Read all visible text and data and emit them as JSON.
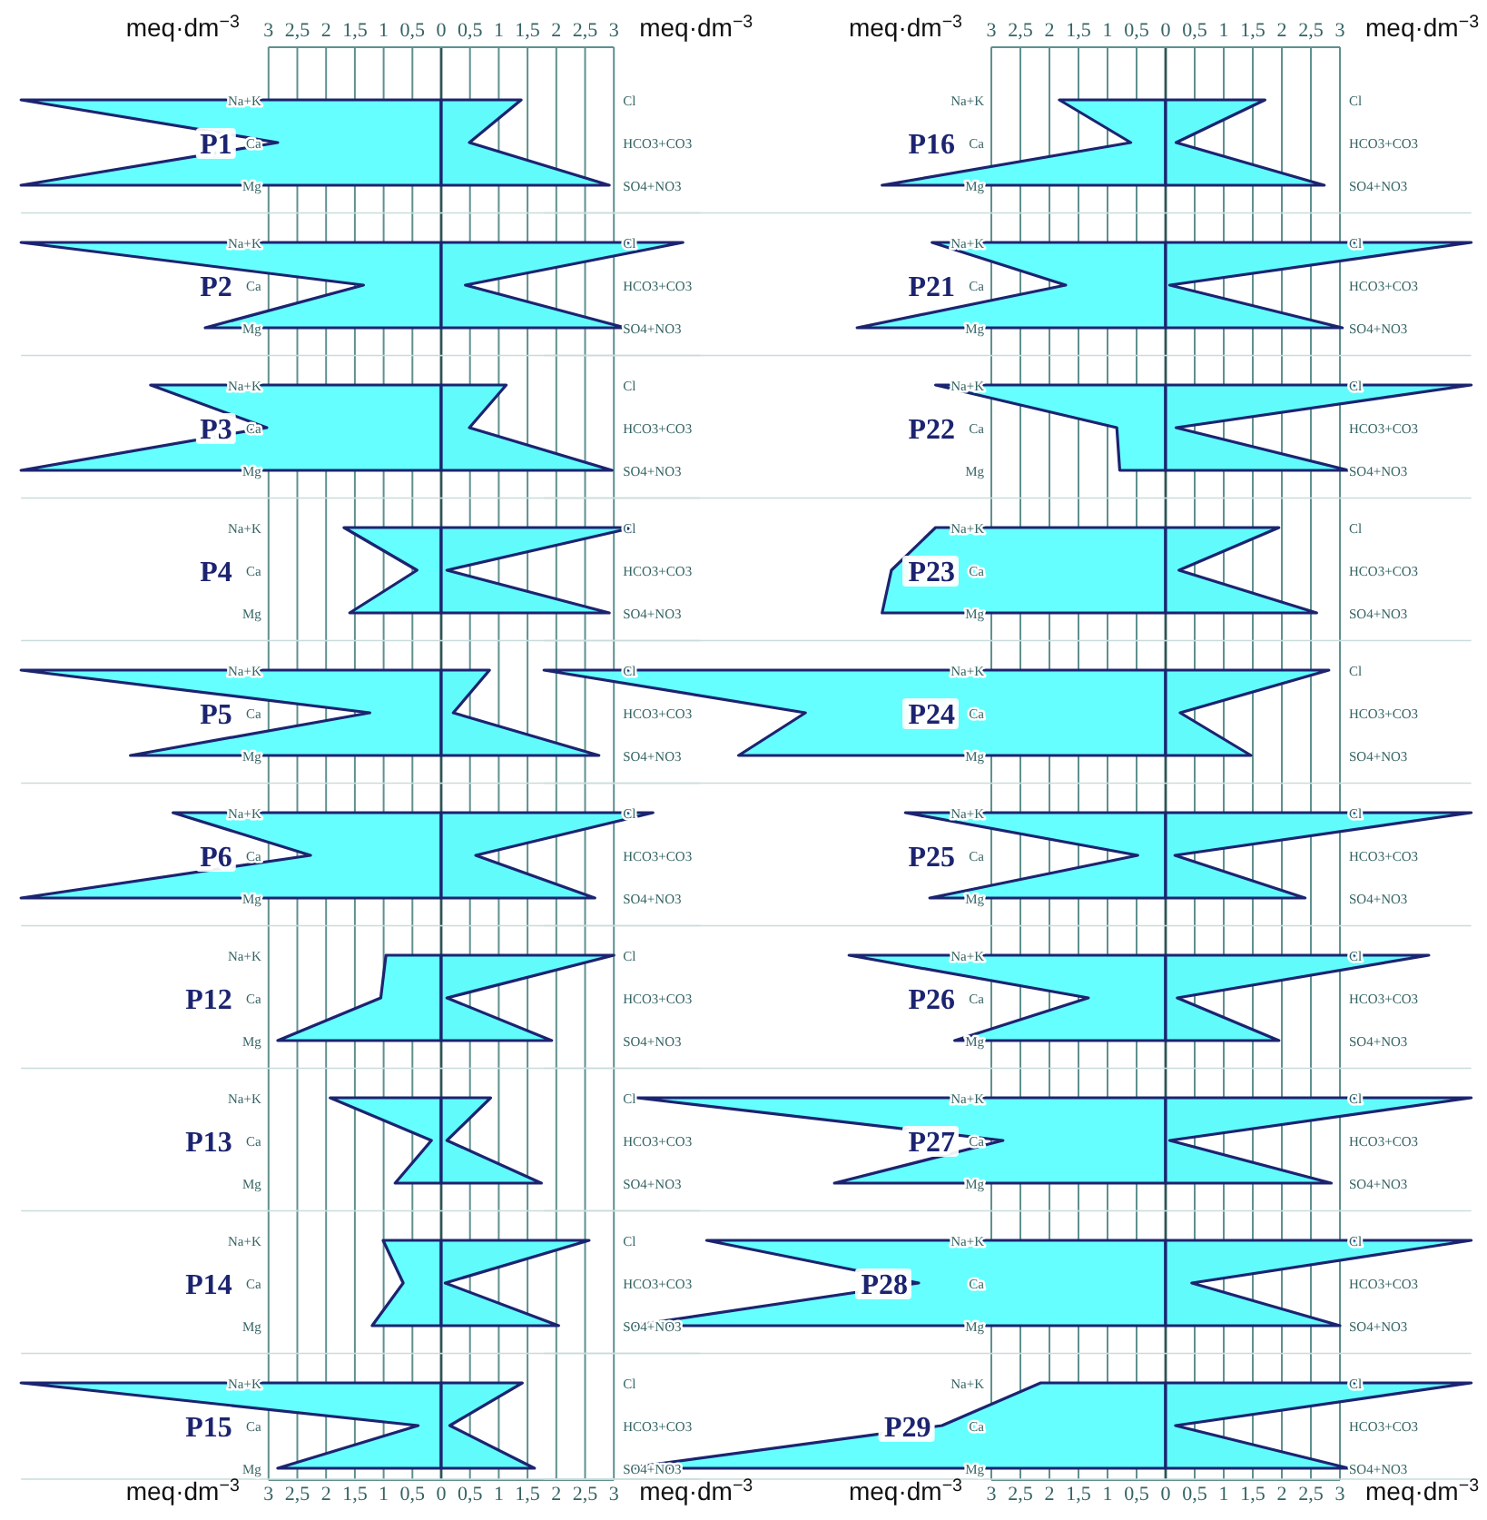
{
  "chart_data": [
    {
      "type": "area",
      "orientation": "horizontal",
      "title": "P1",
      "categories": [
        "Na+K",
        "Ca",
        "Mg"
      ],
      "y2_categories": [
        "Cl",
        "HCO3+CO3",
        "SO4+NO3"
      ],
      "series": [
        {
          "color": "#66ffff",
          "values": [
            -7.3,
            -2.84,
            -7.3
          ]
        },
        {
          "color": "#62fbfb",
          "values": [
            1.39,
            0.49,
            2.92
          ]
        }
      ],
      "xlim": [
        -7.3,
        4.5
      ],
      "xticks": [
        {
          "value": -3,
          "label": "3"
        },
        {
          "value": -2.5,
          "label": "2,5"
        },
        {
          "value": -2,
          "label": "2"
        },
        {
          "value": -1.5,
          "label": "1,5"
        },
        {
          "value": -1,
          "label": "1"
        },
        {
          "value": -0.5,
          "label": "0,5"
        },
        0,
        {
          "value": 0.5,
          "label": "0,5"
        },
        1,
        {
          "value": 1.5,
          "label": "1,5"
        },
        2,
        {
          "value": 2.5,
          "label": "2,5"
        },
        3
      ],
      "xlabel": "meq·dm$^{−3}$",
      "grid": "x"
    },
    {
      "type": "area",
      "orientation": "horizontal",
      "title": "P2",
      "categories": [
        "Na+K",
        "Ca",
        "Mg"
      ],
      "y2_categories": [
        "Cl",
        "HCO3+CO3",
        "SO4+NO3"
      ],
      "series": [
        {
          "color": "#66ffff",
          "values": [
            -7.3,
            -1.35,
            -4.1
          ]
        },
        {
          "color": "#62fbfb",
          "values": [
            4.2,
            0.42,
            3.2
          ]
        }
      ],
      "xlim": [
        -7.3,
        4.5
      ],
      "xticks": [
        -3,
        -2.5,
        -2,
        -1.5,
        -1,
        -0.5,
        0,
        0.5,
        1,
        1.5,
        2,
        2.5,
        3
      ],
      "tick_labels": "y",
      "grid": "x"
    },
    {
      "type": "area",
      "orientation": "horizontal",
      "title": "P3",
      "categories": [
        "Na+K",
        "Ca",
        "Mg"
      ],
      "y2_categories": [
        "Cl",
        "HCO3+CO3",
        "SO4+NO3"
      ],
      "series": [
        {
          "color": "#66ffff",
          "values": [
            -5.05,
            -3.03,
            -7.3
          ]
        },
        {
          "color": "#62fbfb",
          "values": [
            1.13,
            0.49,
            2.97
          ]
        }
      ],
      "xlim": [
        -7.3,
        4.5
      ],
      "xticks": [
        -3,
        -2.5,
        -2,
        -1.5,
        -1,
        -0.5,
        0,
        0.5,
        1,
        1.5,
        2,
        2.5,
        3
      ],
      "tick_labels": "y",
      "grid": "x"
    },
    {
      "type": "area",
      "orientation": "horizontal",
      "title": "P4",
      "categories": [
        "Na+K",
        "Ca",
        "Mg"
      ],
      "y2_categories": [
        "Cl",
        "HCO3+CO3",
        "SO4+NO3"
      ],
      "series": [
        {
          "color": "#66ffff",
          "values": [
            -1.69,
            -0.42,
            -1.59
          ]
        },
        {
          "color": "#62fbfb",
          "values": [
            3.34,
            0.1,
            2.92
          ]
        }
      ],
      "xlim": [
        -7.3,
        4.5
      ],
      "xticks": [
        -3,
        -2.5,
        -2,
        -1.5,
        -1,
        -0.5,
        0,
        0.5,
        1,
        1.5,
        2,
        2.5,
        3
      ],
      "tick_labels": "y",
      "grid": "x"
    },
    {
      "type": "area",
      "orientation": "horizontal",
      "title": "P5",
      "categories": [
        "Na+K",
        "Ca",
        "Mg"
      ],
      "y2_categories": [
        "Cl",
        "HCO3+CO3",
        "SO4+NO3"
      ],
      "series": [
        {
          "color": "#66ffff",
          "values": [
            -7.3,
            -1.24,
            -5.4
          ]
        },
        {
          "color": "#62fbfb",
          "values": [
            0.84,
            0.21,
            2.74
          ]
        }
      ],
      "xlim": [
        -7.3,
        4.5
      ],
      "xticks": [
        -3,
        -2.5,
        -2,
        -1.5,
        -1,
        -0.5,
        0,
        0.5,
        1,
        1.5,
        2,
        2.5,
        3
      ],
      "tick_labels": "y",
      "grid": "x"
    },
    {
      "type": "area",
      "orientation": "horizontal",
      "title": "P6",
      "categories": [
        "Na+K",
        "Ca",
        "Mg"
      ],
      "y2_categories": [
        "Cl",
        "HCO3+CO3",
        "SO4+NO3"
      ],
      "series": [
        {
          "color": "#66ffff",
          "values": [
            -4.66,
            -2.27,
            -7.3
          ]
        },
        {
          "color": "#62fbfb",
          "values": [
            3.68,
            0.6,
            2.67
          ]
        }
      ],
      "xlim": [
        -7.3,
        4.5
      ],
      "xticks": [
        -3,
        -2.5,
        -2,
        -1.5,
        -1,
        -0.5,
        0,
        0.5,
        1,
        1.5,
        2,
        2.5,
        3
      ],
      "tick_labels": "y",
      "grid": "x"
    },
    {
      "type": "area",
      "orientation": "horizontal",
      "title": "P12",
      "categories": [
        "Na+K",
        "Ca",
        "Mg"
      ],
      "y2_categories": [
        "Cl",
        "HCO3+CO3",
        "SO4+NO3"
      ],
      "series": [
        {
          "color": "#66ffff",
          "values": [
            -0.96,
            -1.05,
            -2.84
          ]
        },
        {
          "color": "#62fbfb",
          "values": [
            3.0,
            0.1,
            1.92
          ]
        }
      ],
      "xlim": [
        -7.3,
        4.5
      ],
      "xticks": [
        -3,
        -2.5,
        -2,
        -1.5,
        -1,
        -0.5,
        0,
        0.5,
        1,
        1.5,
        2,
        2.5,
        3
      ],
      "tick_labels": "y",
      "grid": "x"
    },
    {
      "type": "area",
      "orientation": "horizontal",
      "title": "P13",
      "categories": [
        "Na+K",
        "Ca",
        "Mg"
      ],
      "y2_categories": [
        "Cl",
        "HCO3+CO3",
        "SO4+NO3"
      ],
      "series": [
        {
          "color": "#66ffff",
          "values": [
            -1.93,
            -0.17,
            -0.8
          ]
        },
        {
          "color": "#62fbfb",
          "values": [
            0.86,
            0.1,
            1.74
          ]
        }
      ],
      "xlim": [
        -7.3,
        4.5
      ],
      "xticks": [
        -3,
        -2.5,
        -2,
        -1.5,
        -1,
        -0.5,
        0,
        0.5,
        1,
        1.5,
        2,
        2.5,
        3
      ],
      "tick_labels": "y",
      "grid": "x"
    },
    {
      "type": "area",
      "orientation": "horizontal",
      "title": "P14",
      "categories": [
        "Na+K",
        "Ca",
        "Mg"
      ],
      "y2_categories": [
        "Cl",
        "HCO3+CO3",
        "SO4+NO3"
      ],
      "series": [
        {
          "color": "#66ffff",
          "values": [
            -1.01,
            -0.66,
            -1.2
          ]
        },
        {
          "color": "#62fbfb",
          "values": [
            2.57,
            0.07,
            2.04
          ]
        }
      ],
      "xlim": [
        -7.3,
        4.5
      ],
      "xticks": [
        -3,
        -2.5,
        -2,
        -1.5,
        -1,
        -0.5,
        0,
        0.5,
        1,
        1.5,
        2,
        2.5,
        3
      ],
      "tick_labels": "y",
      "grid": "x"
    },
    {
      "type": "area",
      "orientation": "horizontal",
      "title": "P15",
      "categories": [
        "Na+K",
        "Ca",
        "Mg"
      ],
      "y2_categories": [
        "Cl",
        "HCO3+CO3",
        "SO4+NO3"
      ],
      "series": [
        {
          "color": "#66ffff",
          "values": [
            -7.3,
            -0.4,
            -2.84
          ]
        },
        {
          "color": "#62fbfb",
          "values": [
            1.41,
            0.15,
            1.62
          ]
        }
      ],
      "xlim": [
        -7.3,
        4.5
      ],
      "xticks": [
        {
          "value": -3,
          "label": "3"
        },
        {
          "value": -2.5,
          "label": "2,5"
        },
        {
          "value": -2,
          "label": "2"
        },
        {
          "value": -1.5,
          "label": "1,5"
        },
        {
          "value": -1,
          "label": "1"
        },
        {
          "value": -0.5,
          "label": "0,5"
        },
        0,
        {
          "value": 0.5,
          "label": "0,5"
        },
        1,
        {
          "value": 1.5,
          "label": "1,5"
        },
        2,
        {
          "value": 2.5,
          "label": "2,5"
        },
        3
      ],
      "xlabel": "meq·dm$^{−3}$",
      "grid": "x"
    },
    {
      "type": "area",
      "orientation": "horizontal",
      "title": "P16",
      "categories": [
        "Na+K",
        "Ca",
        "Mg"
      ],
      "y2_categories": [
        "Cl",
        "HCO3+CO3",
        "SO4+NO3"
      ],
      "series": [
        {
          "color": "#66ffff",
          "values": [
            -1.83,
            -0.6,
            -4.88
          ]
        },
        {
          "color": "#62fbfb",
          "values": [
            1.71,
            0.18,
            2.73
          ]
        }
      ],
      "xlim": [
        -10.7,
        5.26
      ],
      "xticks": [
        {
          "value": -3,
          "label": "3"
        },
        {
          "value": -2.5,
          "label": "2,5"
        },
        {
          "value": -2,
          "label": "2"
        },
        {
          "value": -1.5,
          "label": "1,5"
        },
        {
          "value": -1,
          "label": "1"
        },
        {
          "value": -0.5,
          "label": "0,5"
        },
        0,
        {
          "value": 0.5,
          "label": "0,5"
        },
        1,
        {
          "value": 1.5,
          "label": "1,5"
        },
        2,
        {
          "value": 2.5,
          "label": "2,5"
        },
        3
      ],
      "xlabel": "meq·dm$^{−3}$",
      "grid": "x"
    },
    {
      "type": "area",
      "orientation": "horizontal",
      "title": "P21",
      "categories": [
        "Na+K",
        "Ca",
        "Mg"
      ],
      "y2_categories": [
        "Cl",
        "HCO3+CO3",
        "SO4+NO3"
      ],
      "series": [
        {
          "color": "#66ffff",
          "values": [
            -4.02,
            -1.72,
            -5.31
          ]
        },
        {
          "color": "#62fbfb",
          "values": [
            5.26,
            0.07,
            3.04
          ]
        }
      ],
      "xlim": [
        -10.7,
        5.26
      ],
      "xticks": [
        -3,
        -2.5,
        -2,
        -1.5,
        -1,
        -0.5,
        0,
        0.5,
        1,
        1.5,
        2,
        2.5,
        3
      ],
      "tick_labels": "y",
      "grid": "x"
    },
    {
      "type": "area",
      "orientation": "horizontal",
      "title": "P22",
      "categories": [
        "Na+K",
        "Ca",
        "Mg"
      ],
      "y2_categories": [
        "Cl",
        "HCO3+CO3",
        "SO4+NO3"
      ],
      "series": [
        {
          "color": "#66ffff",
          "values": [
            -3.96,
            -0.84,
            -0.79
          ]
        },
        {
          "color": "#62fbfb",
          "values": [
            5.26,
            0.18,
            3.15
          ]
        }
      ],
      "xlim": [
        -10.7,
        5.26
      ],
      "xticks": [
        -3,
        -2.5,
        -2,
        -1.5,
        -1,
        -0.5,
        0,
        0.5,
        1,
        1.5,
        2,
        2.5,
        3
      ],
      "tick_labels": "y",
      "grid": "x"
    },
    {
      "type": "area",
      "orientation": "horizontal",
      "title": "P23",
      "categories": [
        "Na+K",
        "Ca",
        "Mg"
      ],
      "y2_categories": [
        "Cl",
        "HCO3+CO3",
        "SO4+NO3"
      ],
      "series": [
        {
          "color": "#66ffff",
          "values": [
            -3.96,
            -4.72,
            -4.88
          ]
        },
        {
          "color": "#62fbfb",
          "values": [
            1.95,
            0.23,
            2.6
          ]
        }
      ],
      "xlim": [
        -10.7,
        5.26
      ],
      "xticks": [
        -3,
        -2.5,
        -2,
        -1.5,
        -1,
        -0.5,
        0,
        0.5,
        1,
        1.5,
        2,
        2.5,
        3
      ],
      "tick_labels": "y",
      "grid": "x"
    },
    {
      "type": "area",
      "orientation": "horizontal",
      "title": "P24",
      "categories": [
        "Na+K",
        "Ca",
        "Mg"
      ],
      "y2_categories": [
        "Cl",
        "HCO3+CO3",
        "SO4+NO3"
      ],
      "series": [
        {
          "color": "#66ffff",
          "values": [
            -10.7,
            -6.2,
            -7.35
          ]
        },
        {
          "color": "#62fbfb",
          "values": [
            2.81,
            0.25,
            1.47
          ]
        }
      ],
      "xlim": [
        -10.7,
        5.26
      ],
      "xticks": [
        -3,
        -2.5,
        -2,
        -1.5,
        -1,
        -0.5,
        0,
        0.5,
        1,
        1.5,
        2,
        2.5,
        3
      ],
      "tick_labels": "y",
      "grid": "x"
    },
    {
      "type": "area",
      "orientation": "horizontal",
      "title": "P25",
      "categories": [
        "Na+K",
        "Ca",
        "Mg"
      ],
      "y2_categories": [
        "Cl",
        "HCO3+CO3",
        "SO4+NO3"
      ],
      "series": [
        {
          "color": "#66ffff",
          "values": [
            -4.48,
            -0.48,
            -4.06
          ]
        },
        {
          "color": "#62fbfb",
          "values": [
            5.26,
            0.16,
            2.4
          ]
        }
      ],
      "xlim": [
        -10.7,
        5.26
      ],
      "xticks": [
        -3,
        -2.5,
        -2,
        -1.5,
        -1,
        -0.5,
        0,
        0.5,
        1,
        1.5,
        2,
        2.5,
        3
      ],
      "tick_labels": "y",
      "grid": "x"
    },
    {
      "type": "area",
      "orientation": "horizontal",
      "title": "P26",
      "categories": [
        "Na+K",
        "Ca",
        "Mg"
      ],
      "y2_categories": [
        "Cl",
        "HCO3+CO3",
        "SO4+NO3"
      ],
      "series": [
        {
          "color": "#66ffff",
          "values": [
            -5.45,
            -1.33,
            -3.63
          ]
        },
        {
          "color": "#62fbfb",
          "values": [
            4.53,
            0.2,
            1.95
          ]
        }
      ],
      "xlim": [
        -10.7,
        5.26
      ],
      "xticks": [
        -3,
        -2.5,
        -2,
        -1.5,
        -1,
        -0.5,
        0,
        0.5,
        1,
        1.5,
        2,
        2.5,
        3
      ],
      "tick_labels": "y",
      "grid": "x"
    },
    {
      "type": "area",
      "orientation": "horizontal",
      "title": "P27",
      "categories": [
        "Na+K",
        "Ca",
        "Mg"
      ],
      "y2_categories": [
        "Cl",
        "HCO3+CO3",
        "SO4+NO3"
      ],
      "series": [
        {
          "color": "#66ffff",
          "values": [
            -9.1,
            -2.8,
            -5.7
          ]
        },
        {
          "color": "#62fbfb",
          "values": [
            5.26,
            0.07,
            2.85
          ]
        }
      ],
      "xlim": [
        -10.7,
        5.26
      ],
      "xticks": [
        -3,
        -2.5,
        -2,
        -1.5,
        -1,
        -0.5,
        0,
        0.5,
        1,
        1.5,
        2,
        2.5,
        3
      ],
      "tick_labels": "y",
      "grid": "x"
    },
    {
      "type": "area",
      "orientation": "horizontal",
      "title": "P28",
      "categories": [
        "Na+K",
        "Ca",
        "Mg"
      ],
      "y2_categories": [
        "Cl",
        "HCO3+CO3",
        "SO4+NO3"
      ],
      "series": [
        {
          "color": "#66ffff",
          "values": [
            -7.9,
            -4.25,
            -9.2
          ]
        },
        {
          "color": "#62fbfb",
          "values": [
            5.26,
            0.45,
            3.0
          ]
        }
      ],
      "xlim": [
        -10.7,
        5.26
      ],
      "xticks": [
        -3,
        -2.5,
        -2,
        -1.5,
        -1,
        -0.5,
        0,
        0.5,
        1,
        1.5,
        2,
        2.5,
        3
      ],
      "tick_labels": "y",
      "grid": "x"
    },
    {
      "type": "area",
      "orientation": "horizontal",
      "title": "P29",
      "categories": [
        "Na+K",
        "Ca",
        "Mg"
      ],
      "y2_categories": [
        "Cl",
        "HCO3+CO3",
        "SO4+NO3"
      ],
      "series": [
        {
          "color": "#66ffff",
          "values": [
            -2.15,
            -3.85,
            -9.3
          ]
        },
        {
          "color": "#62fbfb",
          "values": [
            5.26,
            0.17,
            3.15
          ]
        }
      ],
      "xlim": [
        -10.7,
        5.26
      ],
      "xticks": [
        {
          "value": -3,
          "label": "3"
        },
        {
          "value": -2.5,
          "label": "2,5"
        },
        {
          "value": -2,
          "label": "2"
        },
        {
          "value": -1.5,
          "label": "1,5"
        },
        {
          "value": -1,
          "label": "1"
        },
        {
          "value": -0.5,
          "label": "0,5"
        },
        0,
        {
          "value": 0.5,
          "label": "0,5"
        },
        1,
        {
          "value": 1.5,
          "label": "1,5"
        },
        2,
        {
          "value": 2.5,
          "label": "2,5"
        },
        3
      ],
      "xlabel": "meq·dm$^{−3}$",
      "grid": "x"
    }
  ]
}
